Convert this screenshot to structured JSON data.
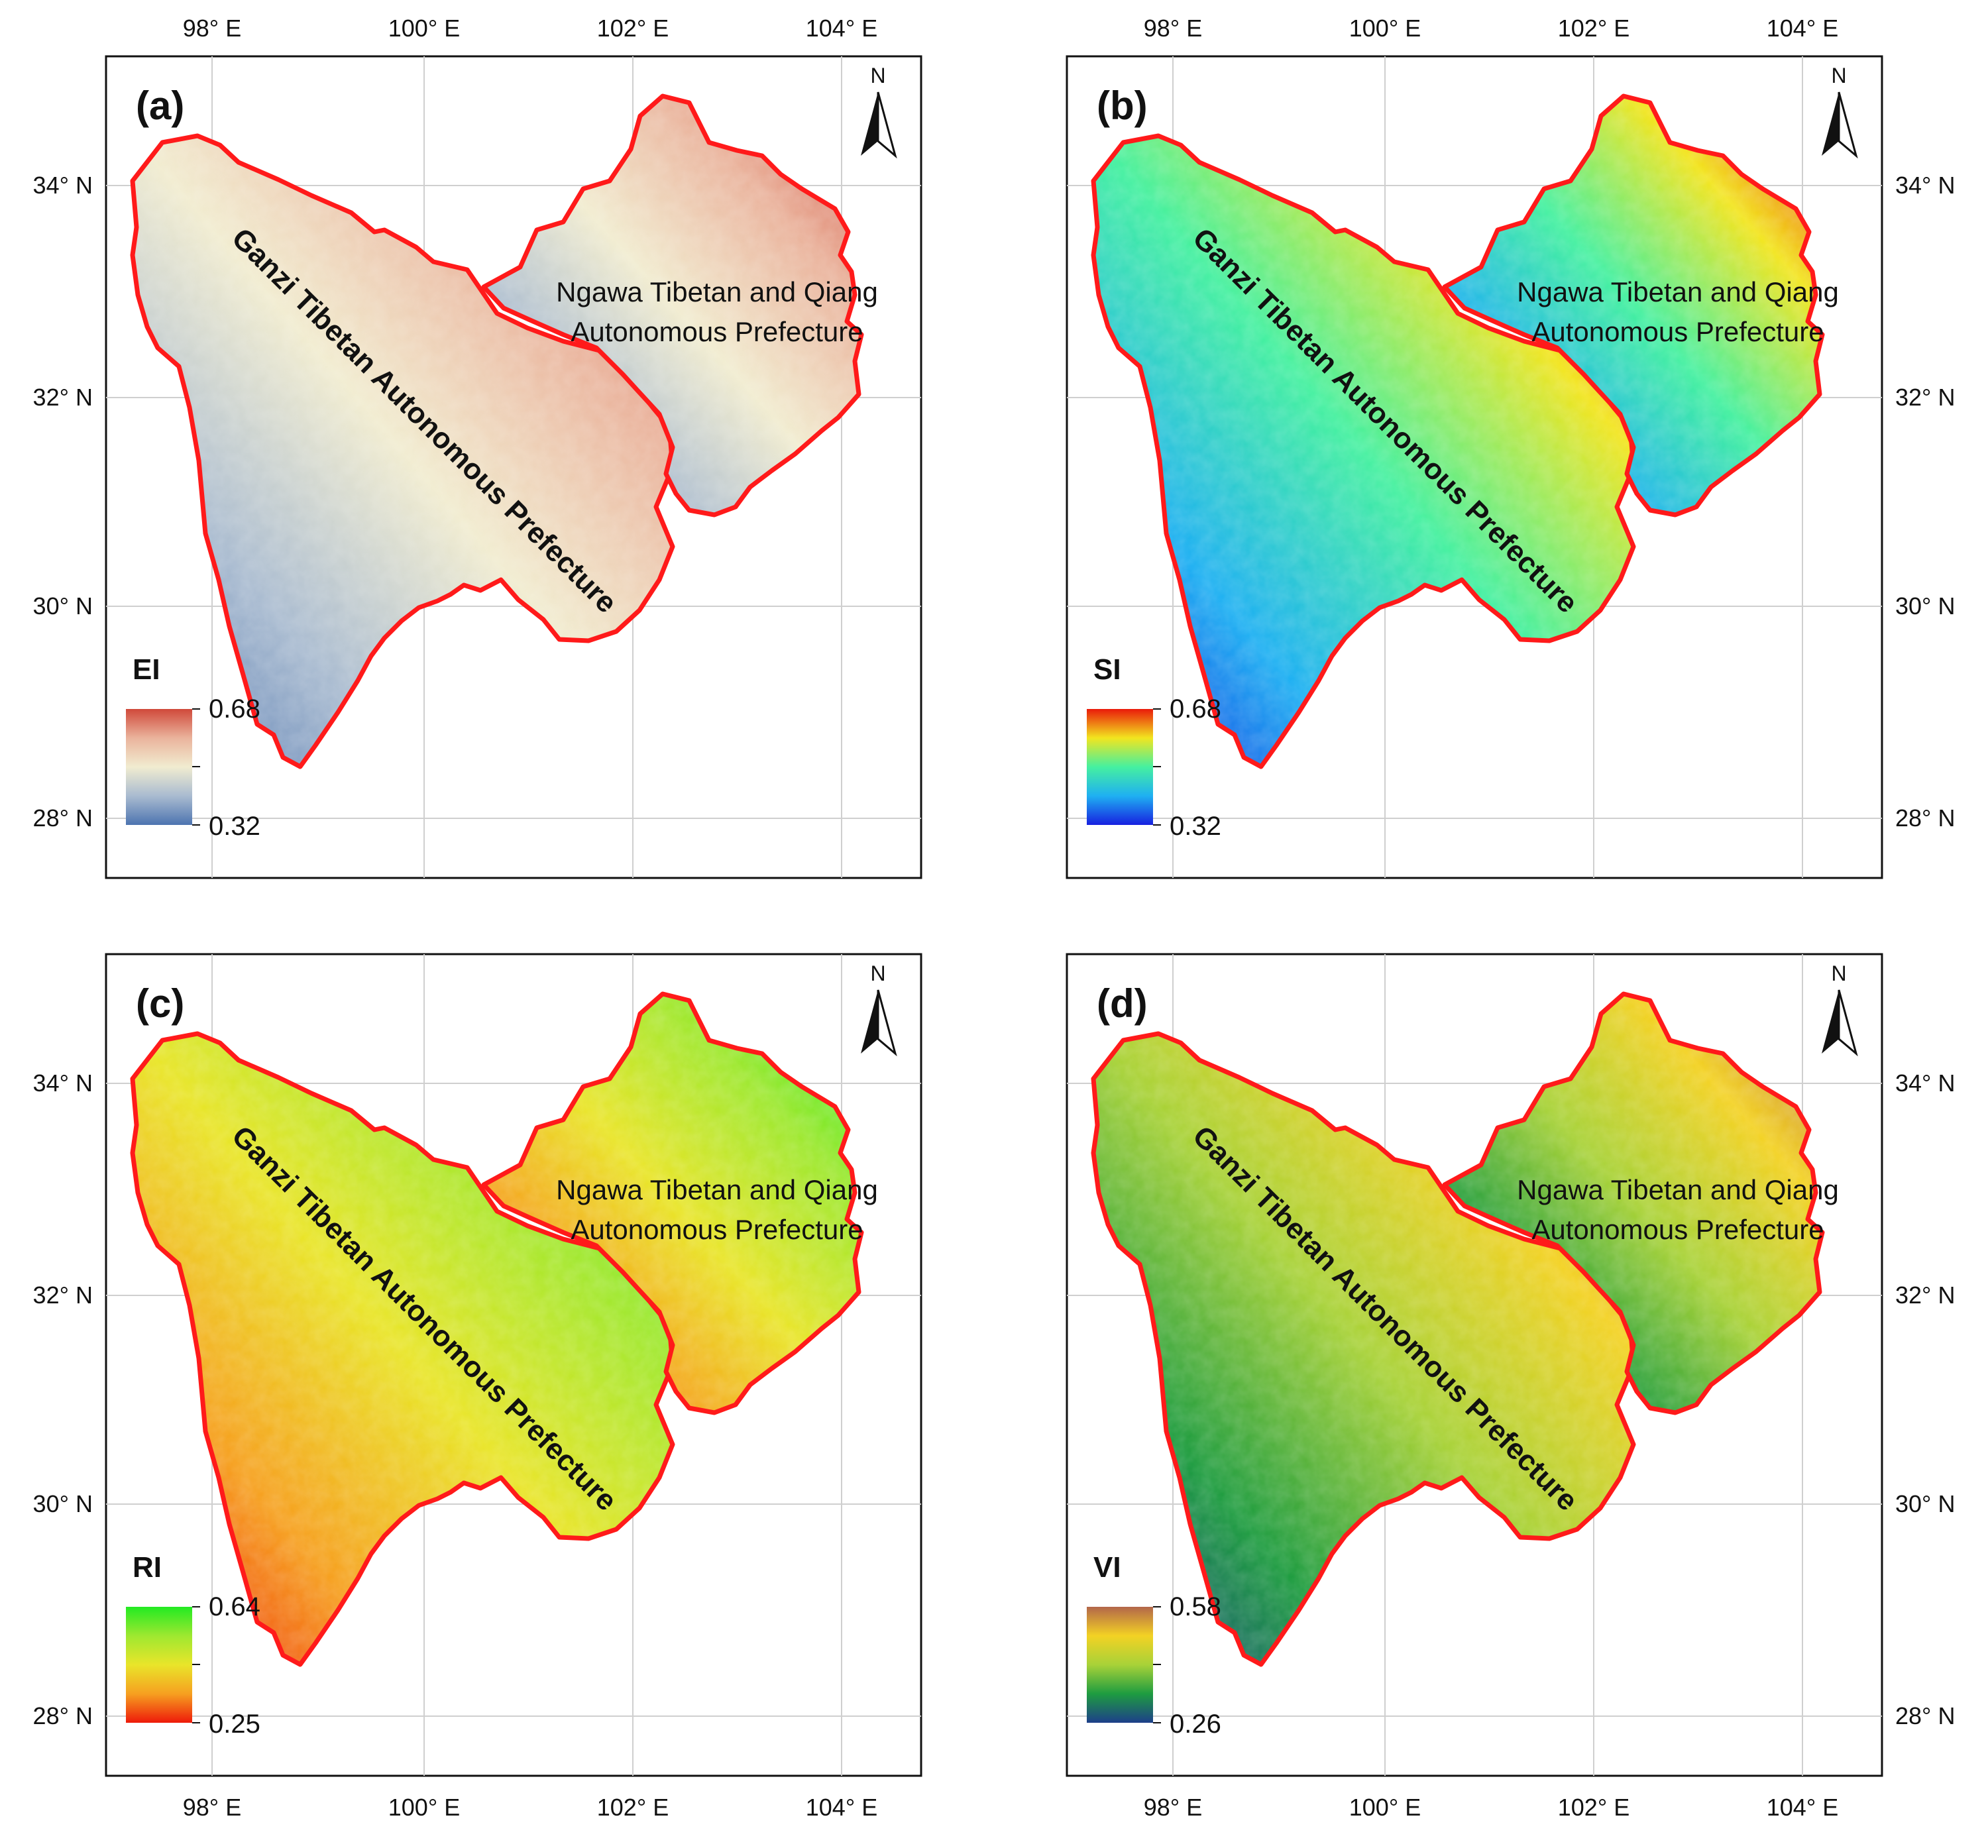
{
  "figure": {
    "gradients": {
      "EI": [
        "#4d74b0",
        "#a9bbd0",
        "#f1ecd0",
        "#eab39c",
        "#d0493a"
      ],
      "SI": [
        "#1720e0",
        "#1fb0f2",
        "#45f0a0",
        "#f2e51f",
        "#ea1a0a"
      ],
      "RI": [
        "#ee1a0a",
        "#f6a020",
        "#e9e52a",
        "#9ee830",
        "#22ea22"
      ],
      "VI": [
        "#1d3f8a",
        "#1e9c40",
        "#a8d238",
        "#f3d224",
        "#b3674a"
      ]
    },
    "boundary_color": "#ff1a1a",
    "panels": [
      {
        "id": "a",
        "panel_label": "(a)",
        "index": "EI",
        "legend_title": "EI",
        "legend_max": "0.68",
        "legend_min": "0.32",
        "x_ticks": [
          "98° E",
          "100° E",
          "102° E",
          "104° E"
        ],
        "y_ticks": [
          "34° N",
          "32° N",
          "30° N",
          "28° N"
        ],
        "ganzi_label": "Ganzi Tibetan Autonomous Prefecture",
        "ngawa_line1": "Ngawa Tibetan and Qiang",
        "ngawa_line2": "Autonomous Prefecture",
        "north": "N"
      },
      {
        "id": "b",
        "panel_label": "(b)",
        "index": "SI",
        "legend_title": "SI",
        "legend_max": "0.68",
        "legend_min": "0.32",
        "x_ticks": [
          "98° E",
          "100° E",
          "102° E",
          "104° E"
        ],
        "y_ticks": [
          "34° N",
          "32° N",
          "30° N",
          "28° N"
        ],
        "ganzi_label": "Ganzi Tibetan Autonomous Prefecture",
        "ngawa_line1": "Ngawa Tibetan and Qiang",
        "ngawa_line2": "Autonomous Prefecture",
        "north": "N"
      },
      {
        "id": "c",
        "panel_label": "(c)",
        "index": "RI",
        "legend_title": "RI",
        "legend_max": "0.64",
        "legend_min": "0.25",
        "x_ticks": [
          "98° E",
          "100° E",
          "102° E",
          "104° E"
        ],
        "y_ticks": [
          "34° N",
          "32° N",
          "30° N",
          "28° N"
        ],
        "ganzi_label": "Ganzi Tibetan Autonomous Prefecture",
        "ngawa_line1": "Ngawa Tibetan and Qiang",
        "ngawa_line2": "Autonomous Prefecture",
        "north": "N"
      },
      {
        "id": "d",
        "panel_label": "(d)",
        "index": "VI",
        "legend_title": "VI",
        "legend_max": "0.58",
        "legend_min": "0.26",
        "x_ticks": [
          "98° E",
          "100° E",
          "102° E",
          "104° E"
        ],
        "y_ticks": [
          "34° N",
          "32° N",
          "30° N",
          "28° N"
        ],
        "ganzi_label": "Ganzi Tibetan Autonomous Prefecture",
        "ngawa_line1": "Ngawa Tibetan and Qiang",
        "ngawa_line2": "Autonomous Prefecture",
        "north": "N"
      }
    ]
  }
}
